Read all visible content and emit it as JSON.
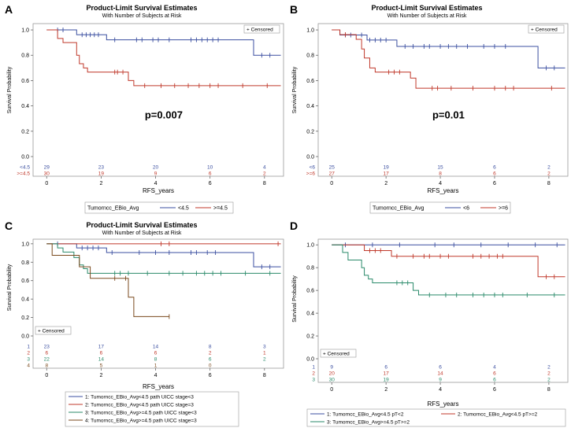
{
  "chart_data": [
    {
      "panel": "A",
      "type": "line",
      "title": "Product-Limit Survival Estimates",
      "subtitle": "With Number of Subjects at Risk",
      "xlabel": "RFS_years",
      "ylabel": "Survival Probability",
      "xlim": [
        -0.5,
        8.7
      ],
      "ylim": [
        0,
        1.05
      ],
      "xticks": [
        0,
        2,
        4,
        6,
        8
      ],
      "yticks": [
        0.0,
        0.2,
        0.4,
        0.6,
        0.8,
        1.0
      ],
      "censored_label": "+ Censored",
      "censored_legend_position": "top-right",
      "annotation": "p=0.007",
      "legend_title": "Tumorncc_EBio_Avg",
      "series": [
        {
          "name": "<4.5",
          "color": "#3b4fa0",
          "steps": [
            [
              0,
              1.0
            ],
            [
              1.1,
              0.962
            ],
            [
              2.2,
              0.922
            ],
            [
              7.6,
              0.8
            ],
            [
              8.6,
              0.8
            ]
          ],
          "censors": [
            0.4,
            0.6,
            1.3,
            1.45,
            1.6,
            1.75,
            1.9,
            2.5,
            3.3,
            3.5,
            3.9,
            4.1,
            4.5,
            5.3,
            5.5,
            5.7,
            5.9,
            6.1,
            6.3,
            7.9,
            8.2
          ]
        },
        {
          "name": ">=4.5",
          "color": "#c0392b",
          "steps": [
            [
              0,
              1.0
            ],
            [
              0.4,
              0.933
            ],
            [
              0.6,
              0.9
            ],
            [
              1.1,
              0.8
            ],
            [
              1.2,
              0.733
            ],
            [
              1.35,
              0.7
            ],
            [
              1.5,
              0.667
            ],
            [
              3.0,
              0.6
            ],
            [
              3.2,
              0.56
            ],
            [
              8.6,
              0.56
            ]
          ],
          "censors": [
            2.5,
            2.6,
            2.8,
            3.6,
            4.2,
            4.7,
            5.2,
            5.6,
            6.0,
            6.3,
            7.2,
            8.1
          ]
        }
      ],
      "at_risk": {
        "times": [
          0,
          2,
          4,
          6,
          8
        ],
        "rows": [
          {
            "label": "<4.5",
            "values": [
              29,
              23,
              20,
              10,
              4
            ]
          },
          {
            "label": ">=4.5",
            "values": [
              30,
              19,
              9,
              6,
              2
            ]
          }
        ]
      }
    },
    {
      "panel": "B",
      "type": "line",
      "title": "Product-Limit Survival Estimates",
      "subtitle": "With Number of Subjects at Risk",
      "xlabel": "RFS_years",
      "ylabel": "Survival Probability",
      "xlim": [
        -0.5,
        8.7
      ],
      "ylim": [
        0,
        1.05
      ],
      "xticks": [
        0,
        2,
        4,
        6,
        8
      ],
      "yticks": [
        0.0,
        0.2,
        0.4,
        0.6,
        0.8,
        1.0
      ],
      "censored_label": "+ Censored",
      "censored_legend_position": "top-right",
      "annotation": "p=0.01",
      "legend_title": "Tumorncc_EBio_Avg",
      "series": [
        {
          "name": "<6",
          "color": "#3b4fa0",
          "steps": [
            [
              0,
              1.0
            ],
            [
              0.3,
              0.96
            ],
            [
              1.3,
              0.92
            ],
            [
              2.4,
              0.87
            ],
            [
              7.6,
              0.7
            ],
            [
              8.6,
              0.7
            ]
          ],
          "censors": [
            0.5,
            0.7,
            1.1,
            1.4,
            1.6,
            1.8,
            2.0,
            2.7,
            3.0,
            3.4,
            3.6,
            4.0,
            4.3,
            4.6,
            5.0,
            5.6,
            6.0,
            6.4,
            7.9,
            8.2
          ]
        },
        {
          "name": ">=6",
          "color": "#c0392b",
          "steps": [
            [
              0,
              1.0
            ],
            [
              0.3,
              0.963
            ],
            [
              0.9,
              0.926
            ],
            [
              1.1,
              0.85
            ],
            [
              1.2,
              0.778
            ],
            [
              1.4,
              0.7
            ],
            [
              1.6,
              0.667
            ],
            [
              2.9,
              0.62
            ],
            [
              3.1,
              0.54
            ],
            [
              8.6,
              0.54
            ]
          ],
          "censors": [
            0.5,
            2.1,
            2.3,
            2.5,
            3.7,
            3.9,
            4.4,
            5.2,
            6.0,
            6.4,
            6.7,
            8.1
          ]
        }
      ],
      "at_risk": {
        "times": [
          0,
          2,
          4,
          6,
          8
        ],
        "rows": [
          {
            "label": "<6",
            "values": [
              25,
              19,
              15,
              6,
              2
            ]
          },
          {
            "label": ">=6",
            "values": [
              27,
              17,
              8,
              6,
              2
            ]
          }
        ]
      }
    },
    {
      "panel": "C",
      "type": "line",
      "title": "Product-Limit Survival Estimates",
      "subtitle": "With Number of Subjects at Risk",
      "xlabel": "RFS_years",
      "ylabel": "Survival Probability",
      "xlim": [
        -0.5,
        8.7
      ],
      "ylim": [
        0,
        1.05
      ],
      "xticks": [
        0,
        2,
        4,
        6,
        8
      ],
      "yticks": [
        0.0,
        0.2,
        0.4,
        0.6,
        0.8,
        1.0
      ],
      "censored_label": "+ Censored",
      "censored_legend_position": "bottom-left",
      "series": [
        {
          "name": "1: Tumorncc_EBio_Avg<4.5 path UICC stage<3",
          "color": "#3b4fa0",
          "steps": [
            [
              0,
              1.0
            ],
            [
              1.1,
              0.955
            ],
            [
              2.2,
              0.905
            ],
            [
              7.6,
              0.75
            ],
            [
              8.6,
              0.75
            ]
          ],
          "censors": [
            0.4,
            1.3,
            1.5,
            1.7,
            1.9,
            2.4,
            3.4,
            4.0,
            4.5,
            5.3,
            5.5,
            5.9,
            6.2,
            7.9,
            8.2
          ]
        },
        {
          "name": "2: Tumorncc_EBio_Avg<4.5 path UICC stage=3",
          "color": "#c0392b",
          "steps": [
            [
              0,
              1.0
            ],
            [
              8.6,
              1.0
            ]
          ],
          "censors": [
            4.2,
            4.5,
            8.5
          ]
        },
        {
          "name": "3: Tumorncc_EBio_Avg>=4.5 path UICC stage<3",
          "color": "#2a8a6a",
          "steps": [
            [
              0,
              1.0
            ],
            [
              0.4,
              0.955
            ],
            [
              0.6,
              0.91
            ],
            [
              1.0,
              0.85
            ],
            [
              1.2,
              0.77
            ],
            [
              1.35,
              0.73
            ],
            [
              1.5,
              0.68
            ],
            [
              8.6,
              0.68
            ]
          ],
          "censors": [
            2.5,
            2.7,
            3.0,
            3.7,
            4.5,
            5.0,
            5.5,
            5.8,
            6.1,
            6.4,
            7.3,
            8.2
          ]
        },
        {
          "name": "4: Tumorncc_EBio_Avg>=4.5 path UICC stage=3",
          "color": "#7a4a1e",
          "steps": [
            [
              0,
              1.0
            ],
            [
              0.2,
              0.875
            ],
            [
              1.2,
              0.75
            ],
            [
              1.6,
              0.625
            ],
            [
              3.0,
              0.42
            ],
            [
              3.2,
              0.21
            ],
            [
              4.5,
              0.21
            ]
          ],
          "censors": [
            2.5,
            2.9,
            4.5
          ]
        }
      ],
      "legend": [
        "1: Tumorncc_EBio_Avg<4.5 path UICC stage<3",
        "2: Tumorncc_EBio_Avg<4.5 path UICC stage=3",
        "3: Tumorncc_EBio_Avg>=4.5 path UICC stage<3",
        "4: Tumorncc_EBio_Avg>=4.5 path UICC stage=3"
      ],
      "at_risk": {
        "times": [
          0,
          2,
          4,
          6,
          8
        ],
        "rows": [
          {
            "label": "1",
            "values": [
              "23",
              "17",
              "14",
              "8",
              "3"
            ]
          },
          {
            "label": "2",
            "values": [
              "6",
              "6",
              "6",
              "2",
              "1"
            ]
          },
          {
            "label": "3",
            "values": [
              "22",
              "14",
              "8",
              "6",
              "2"
            ]
          },
          {
            "label": "4",
            "values": [
              "8",
              "5",
              "1",
              "0",
              ""
            ]
          }
        ]
      }
    },
    {
      "panel": "D",
      "type": "line",
      "title": "",
      "subtitle": "",
      "xlabel": "RFS_years",
      "ylabel": "Survival Probability",
      "xlim": [
        -0.5,
        8.7
      ],
      "ylim": [
        0,
        1.05
      ],
      "xticks": [
        0,
        2,
        4,
        6,
        8
      ],
      "yticks": [
        0.0,
        0.2,
        0.4,
        0.6,
        0.8,
        1.0
      ],
      "censored_label": "+ Censored",
      "censored_legend_position": "bottom-left",
      "series": [
        {
          "name": "1: Tumorncc_EBio_Avg<4.5 pT<2",
          "color": "#3b4fa0",
          "steps": [
            [
              0,
              1.0
            ],
            [
              8.6,
              1.0
            ]
          ],
          "censors": [
            0.5,
            1.5,
            2.5,
            3.8,
            4.5,
            5.5,
            6.5,
            7.5,
            8.3
          ]
        },
        {
          "name": "2: Tumorncc_EBio_Avg<4.5 pT>=2",
          "color": "#c0392b",
          "steps": [
            [
              0,
              1.0
            ],
            [
              1.2,
              0.95
            ],
            [
              2.2,
              0.9
            ],
            [
              7.6,
              0.72
            ],
            [
              8.6,
              0.72
            ]
          ],
          "censors": [
            1.4,
            1.6,
            1.8,
            2.4,
            3.0,
            3.4,
            3.6,
            4.0,
            4.3,
            5.2,
            5.5,
            5.8,
            6.1,
            6.3,
            7.9,
            8.2
          ]
        },
        {
          "name": "3: Tumorncc_EBio_Avg>=4.5 pT>=2",
          "color": "#2a8a6a",
          "steps": [
            [
              0,
              1.0
            ],
            [
              0.4,
              0.933
            ],
            [
              0.6,
              0.867
            ],
            [
              1.1,
              0.8
            ],
            [
              1.2,
              0.733
            ],
            [
              1.35,
              0.7
            ],
            [
              1.5,
              0.667
            ],
            [
              3.0,
              0.6
            ],
            [
              3.2,
              0.56
            ],
            [
              8.6,
              0.56
            ]
          ],
          "censors": [
            2.4,
            2.6,
            2.8,
            3.6,
            4.2,
            4.6,
            5.2,
            5.6,
            6.0,
            6.3,
            7.2,
            8.2
          ]
        }
      ],
      "legend": [
        "1: Tumorncc_EBio_Avg<4.5 pT<2",
        "2: Tumorncc_EBio_Avg<4.5 pT>=2",
        "3: Tumorncc_EBio_Avg>=4.5 pT>=2"
      ],
      "at_risk": {
        "times": [
          0,
          2,
          4,
          6,
          8
        ],
        "rows": [
          {
            "label": "1",
            "values": [
              9,
              6,
              6,
              4,
              2
            ]
          },
          {
            "label": "2",
            "values": [
              20,
              17,
              14,
              6,
              2
            ]
          },
          {
            "label": "3",
            "values": [
              30,
              19,
              9,
              6,
              2
            ]
          }
        ]
      }
    }
  ],
  "panel_letters": [
    "A",
    "B",
    "C",
    "D"
  ]
}
